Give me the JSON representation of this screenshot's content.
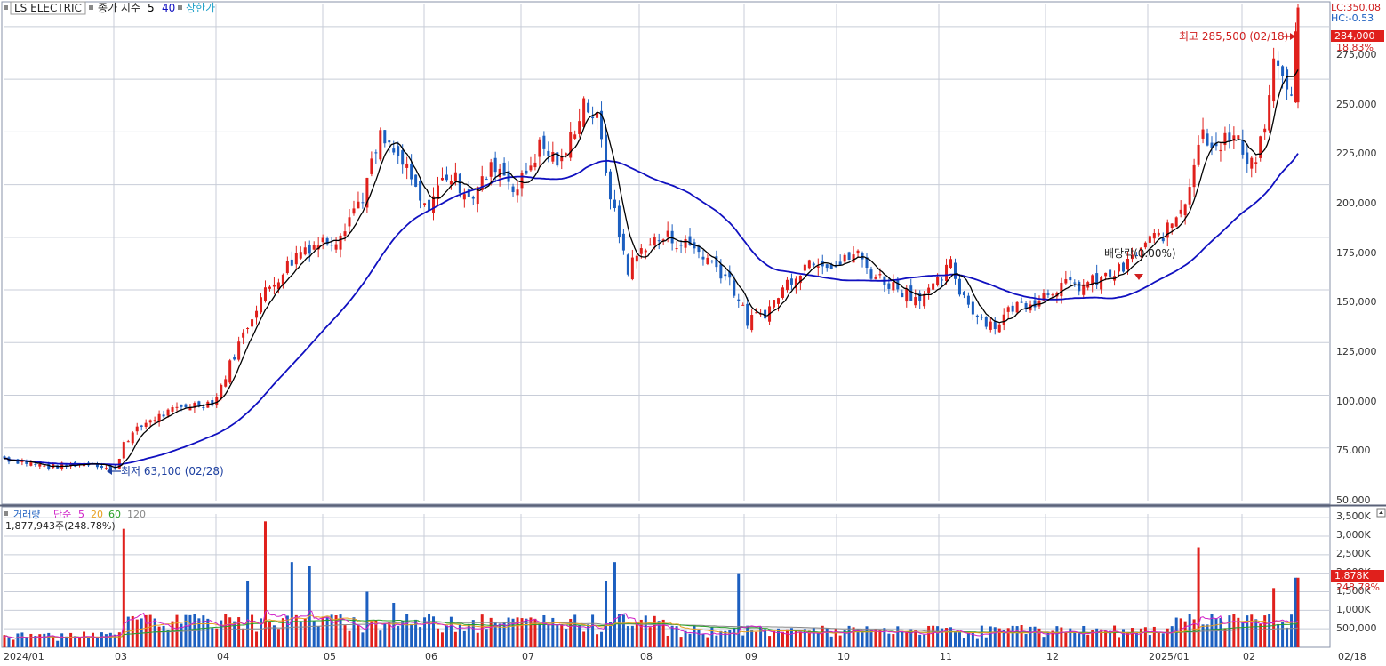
{
  "header": {
    "symbol": "LS ELECTRIC",
    "ind_label": "종가 지수",
    "ma_short": "5",
    "ma_long": "40",
    "limit_label": "상한가"
  },
  "corner": {
    "lc": "LC:350.08",
    "hc": "HC:-0.53"
  },
  "colors": {
    "up": "#e0201c",
    "down": "#1c5fc0",
    "ma_short": "#000000",
    "ma_long": "#1010c0",
    "grid": "#c8cdd8",
    "axis_text": "#333333",
    "vol_ma5": "#d020c8",
    "vol_ma20": "#e8a020",
    "vol_ma60": "#28a028",
    "vol_ma120": "#888888"
  },
  "price_panel": {
    "y_ticks": [
      "275,000",
      "250,000",
      "225,000",
      "200,000",
      "175,000",
      "150,000",
      "125,000",
      "100,000",
      "75,000",
      "50,000"
    ],
    "last_price": "284,000",
    "last_pct": "18.83%",
    "high_label": "최고 285,500 (02/18)",
    "low_label": "최저 63,100 (02/28)",
    "dividend_label": "배당락(0.00%)"
  },
  "volume_panel": {
    "legend_title": "거래량",
    "legend_ma": "단순",
    "legend_p5": "5",
    "legend_p20": "20",
    "legend_p60": "60",
    "legend_p120": "120",
    "last_value_text": "1,877,943주(248.78%)",
    "y_ticks": [
      "3,500K",
      "3,000K",
      "2,500K",
      "2,000K",
      "1,500K",
      "1,000K",
      "500,000"
    ],
    "last_tag": "1,878K",
    "last_tag_pct": "248.78%"
  },
  "x_axis": {
    "labels": [
      "2024/01",
      "03",
      "04",
      "05",
      "06",
      "07",
      "08",
      "09",
      "10",
      "11",
      "12",
      "2025/01",
      "02",
      "02/18"
    ]
  },
  "chart_data": {
    "type": "candlestick",
    "title": "LS ELECTRIC",
    "price_ylim": [
      50000,
      285000
    ],
    "volume_ylim": [
      0,
      3600000
    ],
    "grid": true,
    "x_range": [
      "2024/01",
      "2025/02/18"
    ],
    "high": {
      "value": 285500,
      "date": "02/18"
    },
    "low": {
      "value": 63100,
      "date": "02/28"
    },
    "last_close": 284000,
    "last_change_pct": 18.83,
    "last_volume": 1877943,
    "last_volume_pct": 248.78,
    "anchors": [
      {
        "d": 0,
        "p": 70000
      },
      {
        "d": 20,
        "p": 66000
      },
      {
        "d": 40,
        "p": 68000
      },
      {
        "d": 50,
        "p": 64000
      },
      {
        "d": 54,
        "p": 78000
      },
      {
        "d": 65,
        "p": 88000
      },
      {
        "d": 82,
        "p": 95000
      },
      {
        "d": 95,
        "p": 97000
      },
      {
        "d": 105,
        "p": 122000
      },
      {
        "d": 115,
        "p": 145000
      },
      {
        "d": 125,
        "p": 158000
      },
      {
        "d": 135,
        "p": 170000
      },
      {
        "d": 150,
        "p": 175000
      },
      {
        "d": 162,
        "p": 195000
      },
      {
        "d": 170,
        "p": 222000
      },
      {
        "d": 180,
        "p": 210000
      },
      {
        "d": 190,
        "p": 188000
      },
      {
        "d": 200,
        "p": 205000
      },
      {
        "d": 212,
        "p": 195000
      },
      {
        "d": 222,
        "p": 210000
      },
      {
        "d": 232,
        "p": 198000
      },
      {
        "d": 242,
        "p": 218000
      },
      {
        "d": 252,
        "p": 210000
      },
      {
        "d": 262,
        "p": 240000
      },
      {
        "d": 268,
        "p": 230000
      },
      {
        "d": 276,
        "p": 185000
      },
      {
        "d": 282,
        "p": 160000
      },
      {
        "d": 290,
        "p": 172000
      },
      {
        "d": 300,
        "p": 175000
      },
      {
        "d": 312,
        "p": 170000
      },
      {
        "d": 320,
        "p": 163000
      },
      {
        "d": 328,
        "p": 155000
      },
      {
        "d": 336,
        "p": 135000
      },
      {
        "d": 345,
        "p": 140000
      },
      {
        "d": 355,
        "p": 155000
      },
      {
        "d": 365,
        "p": 165000
      },
      {
        "d": 378,
        "p": 162000
      },
      {
        "d": 385,
        "p": 168000
      },
      {
        "d": 392,
        "p": 158000
      },
      {
        "d": 402,
        "p": 152000
      },
      {
        "d": 412,
        "p": 147000
      },
      {
        "d": 420,
        "p": 150000
      },
      {
        "d": 428,
        "p": 162000
      },
      {
        "d": 432,
        "p": 150000
      },
      {
        "d": 440,
        "p": 138000
      },
      {
        "d": 448,
        "p": 133000
      },
      {
        "d": 456,
        "p": 142000
      },
      {
        "d": 466,
        "p": 145000
      },
      {
        "d": 476,
        "p": 152000
      },
      {
        "d": 486,
        "p": 152000
      },
      {
        "d": 496,
        "p": 155000
      },
      {
        "d": 506,
        "p": 160000
      },
      {
        "d": 516,
        "p": 172000
      },
      {
        "d": 526,
        "p": 178000
      },
      {
        "d": 534,
        "p": 193000
      },
      {
        "d": 541,
        "p": 225000
      },
      {
        "d": 548,
        "p": 220000
      },
      {
        "d": 556,
        "p": 222000
      },
      {
        "d": 565,
        "p": 210000
      },
      {
        "d": 570,
        "p": 228000
      },
      {
        "d": 575,
        "p": 262000
      },
      {
        "d": 580,
        "p": 240000
      },
      {
        "d": 583,
        "p": 250000
      },
      {
        "d": 585,
        "p": 284000
      }
    ],
    "volume_spikes": [
      {
        "d": 54,
        "v": 3200000
      },
      {
        "d": 110,
        "v": 1800000
      },
      {
        "d": 118,
        "v": 3400000
      },
      {
        "d": 130,
        "v": 2300000
      },
      {
        "d": 138,
        "v": 2200000
      },
      {
        "d": 165,
        "v": 1500000
      },
      {
        "d": 177,
        "v": 1200000
      },
      {
        "d": 272,
        "v": 1800000
      },
      {
        "d": 276,
        "v": 2300000
      },
      {
        "d": 333,
        "v": 2000000
      },
      {
        "d": 460,
        "v": 600000
      },
      {
        "d": 541,
        "v": 2700000
      },
      {
        "d": 575,
        "v": 1600000
      },
      {
        "d": 585,
        "v": 1877943
      }
    ]
  }
}
